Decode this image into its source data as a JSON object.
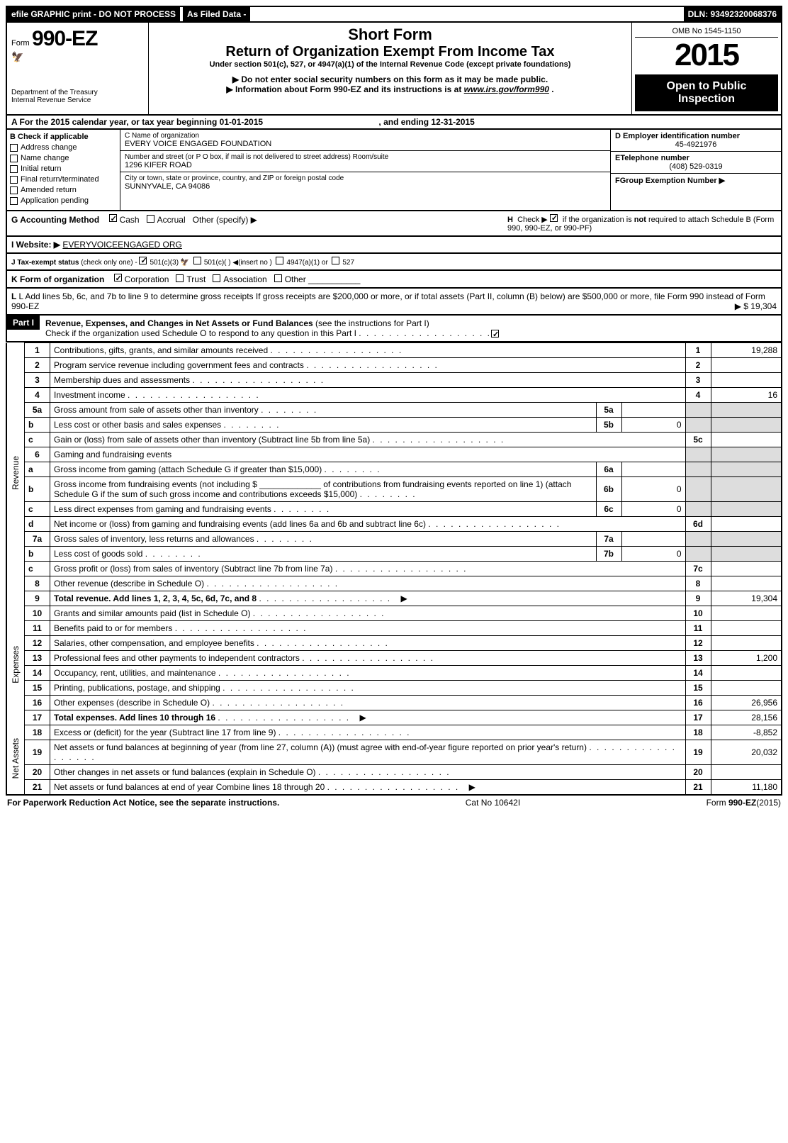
{
  "topbar": {
    "efile": "efile GRAPHIC print - DO NOT PROCESS",
    "asfiled": "As Filed Data -",
    "dln": "DLN: 93492320068376"
  },
  "header": {
    "form_prefix": "Form",
    "form_number": "990-EZ",
    "dept": "Department of the Treasury\nInternal Revenue Service",
    "short_form": "Short Form",
    "return_title": "Return of Organization Exempt From Income Tax",
    "under_section": "Under section 501(c), 527, or 4947(a)(1) of the Internal Revenue Code (except private foundations)",
    "notice1": "▶ Do not enter social security numbers on this form as it may be made public.",
    "notice2_prefix": "▶ Information about Form 990-EZ and its instructions is at ",
    "notice2_link": "www.irs.gov/form990",
    "notice2_suffix": ".",
    "omb": "OMB No  1545-1150",
    "year": "2015",
    "open_public": "Open to Public Inspection"
  },
  "rowA": {
    "text_prefix": "A  For the 2015 calendar year, or tax year beginning ",
    "begin": "01-01-2015",
    "mid": " , and ending ",
    "end": "12-31-2015"
  },
  "colB": {
    "header": "B  Check if applicable",
    "items": [
      "Address change",
      "Name change",
      "Initial return",
      "Final return/terminated",
      "Amended return",
      "Application pending"
    ]
  },
  "colC": {
    "c_label": "C Name of organization",
    "c_val": "EVERY VOICE ENGAGED FOUNDATION",
    "addr_label": "Number and street (or P  O  box, if mail is not delivered to street address) Room/suite",
    "addr_val": "1296 KIFER ROAD",
    "city_label": "City or town, state or province, country, and ZIP or foreign postal code",
    "city_val": "SUNNYVALE, CA  94086"
  },
  "colDEF": {
    "d_label": "D Employer identification number",
    "d_val": "45-4921976",
    "e_label": "ETelephone number",
    "e_val": "(408) 529-0319",
    "f_label": "FGroup Exemption Number   ▶"
  },
  "gh": {
    "g_label": "G Accounting Method",
    "g_cash": "Cash",
    "g_accrual": "Accrual",
    "g_other": "Other (specify) ▶",
    "h_text": "H   Check ▶         if the organization is not required to attach Schedule B (Form 990, 990-EZ, or 990-PF)"
  },
  "ijkl": {
    "i_label": "I Website: ▶",
    "i_val": "EVERYVOICEENGAGED ORG",
    "j_label": "J Tax-exempt status",
    "j_text": "(check only one) -        501(c)(3)          501(c)(  )  ◀(insert no )        4947(a)(1) or        527",
    "k_label": "K Form of organization",
    "k_opts": "Corporation        Trust        Association        Other",
    "l_text": "L Add lines 5b, 6c, and 7b to line 9 to determine gross receipts  If gross receipts are $200,000 or more, or if total assets (Part II, column (B) below) are $500,000 or more, file Form 990 instead of Form 990-EZ",
    "l_amount": "▶ $ 19,304"
  },
  "part1": {
    "header": "Part I",
    "title": "Revenue, Expenses, and Changes in Net Assets or Fund Balances",
    "title_suffix": " (see the instructions for Part I)",
    "check_line": "Check if the organization used Schedule O to respond to any question in this Part I"
  },
  "sideLabels": {
    "revenue": "Revenue",
    "expenses": "Expenses",
    "netassets": "Net Assets"
  },
  "lines": [
    {
      "n": "1",
      "t": "Contributions, gifts, grants, and similar amounts received",
      "box": "1",
      "amt": "19,288"
    },
    {
      "n": "2",
      "t": "Program service revenue including government fees and contracts",
      "box": "2",
      "amt": ""
    },
    {
      "n": "3",
      "t": "Membership dues and assessments",
      "box": "3",
      "amt": ""
    },
    {
      "n": "4",
      "t": "Investment income",
      "box": "4",
      "amt": "16"
    },
    {
      "n": "5a",
      "t": "Gross amount from sale of assets other than inventory",
      "mbox": "5a",
      "mval": ""
    },
    {
      "n": "b",
      "t": "Less  cost or other basis and sales expenses",
      "mbox": "5b",
      "mval": "0"
    },
    {
      "n": "c",
      "t": "Gain or (loss) from sale of assets other than inventory (Subtract line 5b from line 5a)",
      "box": "5c",
      "amt": ""
    },
    {
      "n": "6",
      "t": "Gaming and fundraising events"
    },
    {
      "n": "a",
      "t": "Gross income from gaming (attach Schedule G if greater than $15,000)",
      "mbox": "6a",
      "mval": ""
    },
    {
      "n": "b",
      "t": "Gross income from fundraising events (not including $ _____________ of contributions from fundraising events reported on line 1) (attach Schedule G if the sum of such gross income and contributions exceeds $15,000)",
      "mbox": "6b",
      "mval": "0"
    },
    {
      "n": "c",
      "t": "Less  direct expenses from gaming and fundraising events",
      "mbox": "6c",
      "mval": "0"
    },
    {
      "n": "d",
      "t": "Net income or (loss) from gaming and fundraising events (add lines 6a and 6b and subtract line 6c)",
      "box": "6d",
      "amt": ""
    },
    {
      "n": "7a",
      "t": "Gross sales of inventory, less returns and allowances",
      "mbox": "7a",
      "mval": ""
    },
    {
      "n": "b",
      "t": "Less  cost of goods sold",
      "mbox": "7b",
      "mval": "0"
    },
    {
      "n": "c",
      "t": "Gross profit or (loss) from sales of inventory (Subtract line 7b from line 7a)",
      "box": "7c",
      "amt": ""
    },
    {
      "n": "8",
      "t": "Other revenue (describe in Schedule O)",
      "box": "8",
      "amt": ""
    },
    {
      "n": "9",
      "t": "Total revenue. Add lines 1, 2, 3, 4, 5c, 6d, 7c, and 8",
      "box": "9",
      "amt": "19,304",
      "bold": true,
      "arrow": true
    },
    {
      "n": "10",
      "t": "Grants and similar amounts paid (list in Schedule O)",
      "box": "10",
      "amt": ""
    },
    {
      "n": "11",
      "t": "Benefits paid to or for members",
      "box": "11",
      "amt": ""
    },
    {
      "n": "12",
      "t": "Salaries, other compensation, and employee benefits",
      "box": "12",
      "amt": ""
    },
    {
      "n": "13",
      "t": "Professional fees and other payments to independent contractors",
      "box": "13",
      "amt": "1,200"
    },
    {
      "n": "14",
      "t": "Occupancy, rent, utilities, and maintenance",
      "box": "14",
      "amt": ""
    },
    {
      "n": "15",
      "t": "Printing, publications, postage, and shipping",
      "box": "15",
      "amt": ""
    },
    {
      "n": "16",
      "t": "Other expenses (describe in Schedule O)",
      "box": "16",
      "amt": "26,956"
    },
    {
      "n": "17",
      "t": "Total expenses. Add lines 10 through 16",
      "box": "17",
      "amt": "28,156",
      "bold": true,
      "arrow": true
    },
    {
      "n": "18",
      "t": "Excess or (deficit) for the year (Subtract line 17 from line 9)",
      "box": "18",
      "amt": "-8,852"
    },
    {
      "n": "19",
      "t": "Net assets or fund balances at beginning of year (from line 27, column (A)) (must agree with end-of-year figure reported on prior year's return)",
      "box": "19",
      "amt": "20,032"
    },
    {
      "n": "20",
      "t": "Other changes in net assets or fund balances (explain in Schedule O)",
      "box": "20",
      "amt": ""
    },
    {
      "n": "21",
      "t": "Net assets or fund balances at end of year  Combine lines 18 through 20",
      "box": "21",
      "amt": "11,180",
      "arrow": true
    }
  ],
  "footer": {
    "left": "For Paperwork Reduction Act Notice, see the separate instructions.",
    "mid": "Cat  No  10642I",
    "right": "Form 990-EZ (2015)"
  }
}
